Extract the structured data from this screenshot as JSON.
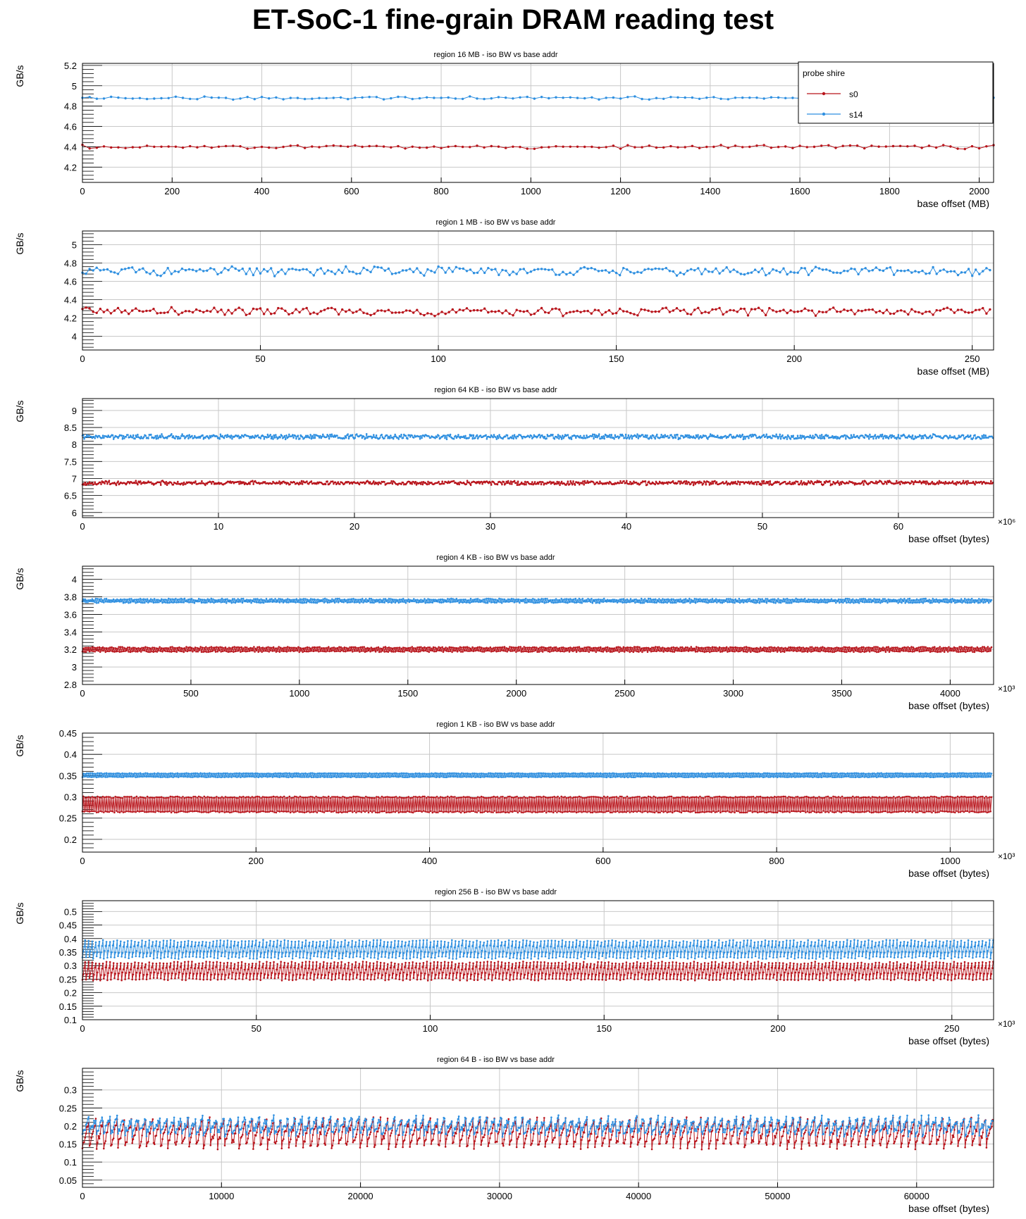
{
  "title": "ET-SoC-1 fine-grain DRAM reading test",
  "legend": {
    "title": "probe shire",
    "placement": "top-right",
    "entries": [
      {
        "name": "s0",
        "color": "#b8141b"
      },
      {
        "name": "s14",
        "color": "#2e8fe0"
      }
    ]
  },
  "chart_data": [
    {
      "type": "line",
      "title": "region 16 MB - iso BW vs base addr",
      "xlabel": "base offset (MB)",
      "ylabel": "GB/s",
      "xlim": [
        0,
        2032
      ],
      "ylim": [
        4.05,
        5.22
      ],
      "xticks": [
        0,
        200,
        400,
        600,
        800,
        1000,
        1200,
        1400,
        1600,
        1800,
        2000
      ],
      "yticks": [
        4.2,
        4.4,
        4.6,
        4.8,
        5,
        5.2
      ],
      "yminor": 0.04,
      "xexp": "",
      "series": [
        {
          "name": "s0",
          "x_start": 0,
          "x_step": 16,
          "count": 128,
          "mean": 4.4,
          "amp": 0.012,
          "period": 0,
          "noise": 0.01
        },
        {
          "name": "s14",
          "x_start": 0,
          "x_step": 16,
          "count": 128,
          "mean": 4.88,
          "amp": 0.008,
          "period": 0,
          "noise": 0.01
        }
      ]
    },
    {
      "type": "line",
      "title": "region 1 MB - iso BW vs base addr",
      "xlabel": "base offset (MB)",
      "ylabel": "GB/s",
      "xlim": [
        0,
        256
      ],
      "ylim": [
        3.85,
        5.15
      ],
      "xticks": [
        0,
        50,
        100,
        150,
        200,
        250
      ],
      "yticks": [
        4,
        4.2,
        4.4,
        4.6,
        4.8,
        5
      ],
      "yminor": 0.04,
      "xexp": "",
      "series": [
        {
          "name": "s0",
          "x_start": 0,
          "x_step": 1,
          "count": 256,
          "mean": 4.27,
          "amp": 0.02,
          "period": 0,
          "noise": 0.03
        },
        {
          "name": "s14",
          "x_start": 0,
          "x_step": 1,
          "count": 256,
          "mean": 4.71,
          "amp": 0.02,
          "period": 0,
          "noise": 0.035
        }
      ]
    },
    {
      "type": "line",
      "title": "region 64 KB - iso BW vs base addr",
      "xlabel": "base offset (bytes)",
      "ylabel": "GB/s",
      "xlim": [
        0,
        67
      ],
      "ylim": [
        5.85,
        9.35
      ],
      "xticks": [
        0,
        10,
        20,
        30,
        40,
        50,
        60
      ],
      "yticks": [
        6,
        6.5,
        7,
        7.5,
        8,
        8.5,
        9
      ],
      "yminor": 0.1,
      "xexp": "×10⁶",
      "series": [
        {
          "name": "s0",
          "x_start": 0,
          "x_step": 0.0655,
          "count": 1024,
          "mean": 6.87,
          "amp": 0.02,
          "period": 0,
          "noise": 0.05
        },
        {
          "name": "s14",
          "x_start": 0,
          "x_step": 0.0655,
          "count": 1024,
          "mean": 8.23,
          "amp": 0.02,
          "period": 0,
          "noise": 0.06
        }
      ]
    },
    {
      "type": "line",
      "title": "region 4 KB - iso BW vs base addr",
      "xlabel": "base offset (bytes)",
      "ylabel": "GB/s",
      "xlim": [
        0,
        4200
      ],
      "ylim": [
        2.8,
        4.15
      ],
      "xticks": [
        0,
        500,
        1000,
        1500,
        2000,
        2500,
        3000,
        3500,
        4000
      ],
      "yticks": [
        2.8,
        3,
        3.2,
        3.4,
        3.6,
        3.8,
        4
      ],
      "yminor": 0.04,
      "xexp": "×10³",
      "series": [
        {
          "name": "s0",
          "x_start": 0,
          "x_step": 4.096,
          "count": 1024,
          "mean": 3.2,
          "amp": 0.02,
          "period": 2,
          "noise": 0.01
        },
        {
          "name": "s14",
          "x_start": 0,
          "x_step": 4.096,
          "count": 1024,
          "mean": 3.755,
          "amp": 0.015,
          "period": 2,
          "noise": 0.01
        }
      ]
    },
    {
      "type": "line",
      "title": "region 1 KB - iso BW vs base addr",
      "xlabel": "base offset (bytes)",
      "ylabel": "GB/s",
      "xlim": [
        0,
        1050
      ],
      "ylim": [
        0.17,
        0.45
      ],
      "xticks": [
        0,
        200,
        400,
        600,
        800,
        1000
      ],
      "yticks": [
        0.2,
        0.25,
        0.3,
        0.35,
        0.4,
        0.45
      ],
      "yminor": 0.01,
      "xexp": "×10³",
      "series": [
        {
          "name": "s0",
          "x_start": 0,
          "x_step": 1.024,
          "count": 1024,
          "mean": 0.282,
          "amp": 0.017,
          "period": 2,
          "noise": 0.002
        },
        {
          "name": "s14",
          "x_start": 0,
          "x_step": 1.024,
          "count": 1024,
          "mean": 0.351,
          "amp": 0.004,
          "period": 2,
          "noise": 0.001
        }
      ]
    },
    {
      "type": "line",
      "title": "region 256 B - iso BW vs base addr",
      "xlabel": "base offset (bytes)",
      "ylabel": "GB/s",
      "xlim": [
        0,
        262
      ],
      "ylim": [
        0.1,
        0.54
      ],
      "xticks": [
        0,
        50,
        100,
        150,
        200,
        250
      ],
      "yticks": [
        0.1,
        0.15,
        0.2,
        0.25,
        0.3,
        0.35,
        0.4,
        0.45,
        0.5
      ],
      "yminor": 0.01,
      "xexp": "×10³",
      "series": [
        {
          "name": "s0",
          "x_start": 0,
          "x_step": 0.256,
          "count": 1024,
          "mean": 0.28,
          "amp": 0.03,
          "period": 4,
          "noise": 0.005
        },
        {
          "name": "s14",
          "x_start": 0,
          "x_step": 0.256,
          "count": 1024,
          "mean": 0.36,
          "amp": 0.03,
          "period": 4,
          "noise": 0.005
        }
      ]
    },
    {
      "type": "line",
      "title": "region 64 B - iso BW vs base addr",
      "xlabel": "base offset (bytes)",
      "ylabel": "GB/s",
      "xlim": [
        0,
        65536
      ],
      "ylim": [
        0.03,
        0.36
      ],
      "xticks": [
        0,
        10000,
        20000,
        30000,
        40000,
        50000,
        60000
      ],
      "yticks": [
        0.05,
        0.1,
        0.15,
        0.2,
        0.25,
        0.3
      ],
      "yminor": 0.01,
      "xexp": "",
      "series": [
        {
          "name": "s0",
          "x_start": 0,
          "x_step": 64,
          "count": 1024,
          "mean": 0.18,
          "amp": 0.035,
          "period": 8,
          "noise": 0.01
        },
        {
          "name": "s14",
          "x_start": 0,
          "x_step": 64,
          "count": 1024,
          "mean": 0.2,
          "amp": 0.02,
          "period": 8,
          "noise": 0.01
        }
      ]
    }
  ]
}
